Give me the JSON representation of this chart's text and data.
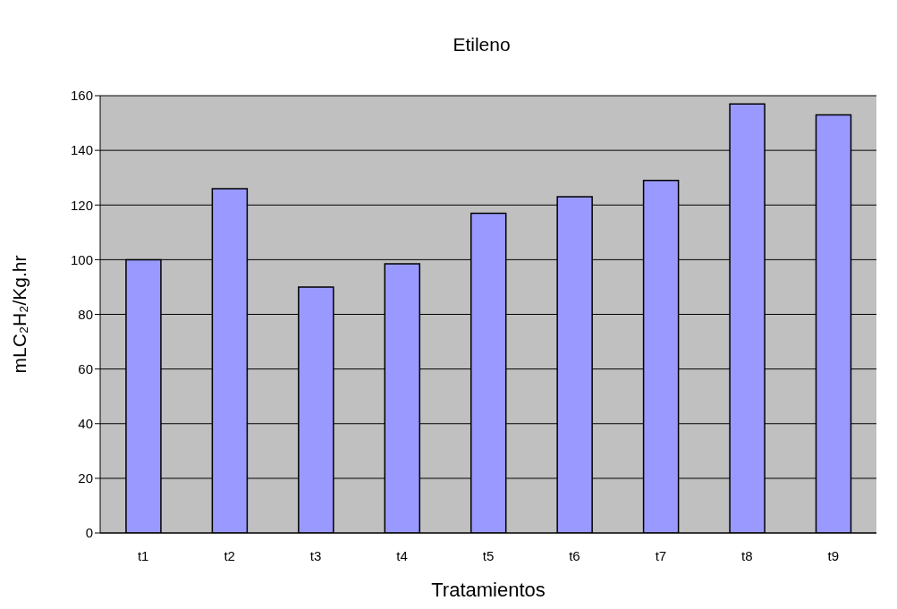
{
  "chart_data": {
    "type": "bar",
    "title": "Etileno",
    "xlabel": "Tratamientos",
    "ylabel": "mLC₂H₂/Kg.hr",
    "categories": [
      "t1",
      "t2",
      "t3",
      "t4",
      "t5",
      "t6",
      "t7",
      "t8",
      "t9"
    ],
    "values": [
      100,
      126,
      90,
      98.5,
      117,
      123,
      129,
      157,
      153
    ],
    "color": "#9999ff",
    "ylim": [
      0,
      160
    ],
    "yticks": [
      0,
      20,
      40,
      60,
      80,
      100,
      120,
      140,
      160
    ],
    "grid": "y"
  }
}
